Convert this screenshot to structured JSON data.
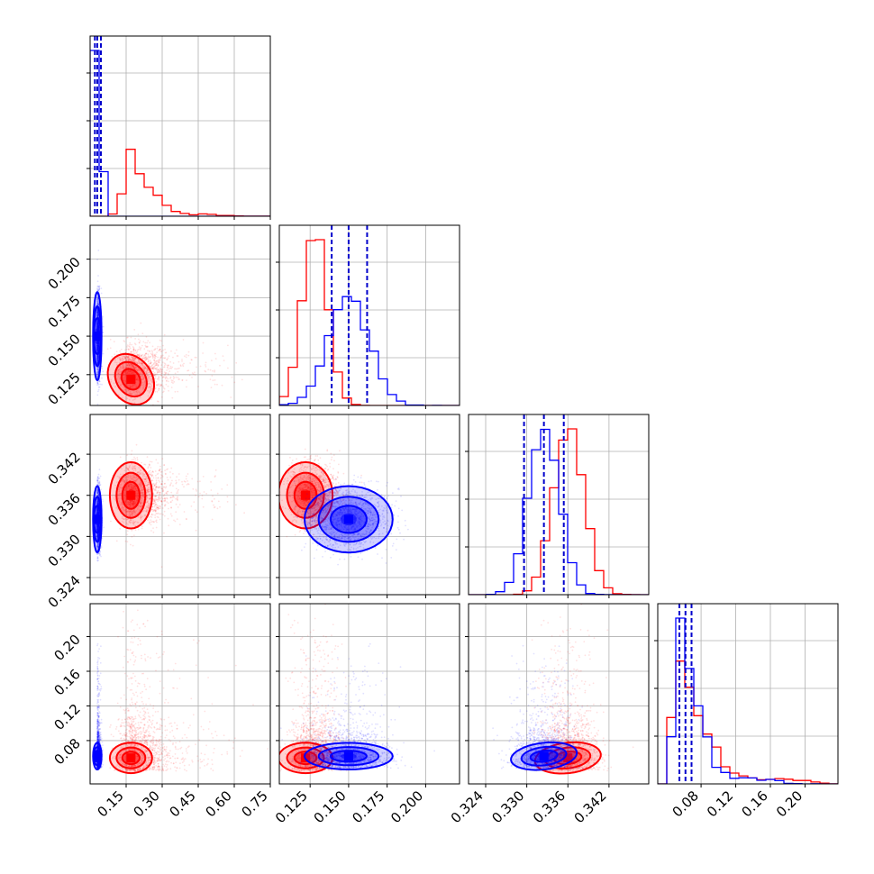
{
  "chart_data": {
    "type": "corner",
    "parameters": 4,
    "series": [
      {
        "color": "#0000ff",
        "mean": [
          0.03,
          0.15,
          0.3325,
          0.062
        ],
        "sd": [
          0.008,
          0.013,
          0.0022,
          0.007
        ],
        "hist_peak": [
          0.03,
          0.15,
          0.3325,
          0.062
        ],
        "quantiles": [
          [
            0.02,
            0.03,
            0.045
          ],
          [
            0.139,
            0.15,
            0.162
          ],
          [
            0.3296,
            0.3325,
            0.3354
          ],
          [
            0.055,
            0.062,
            0.069
          ]
        ]
      },
      {
        "color": "#ff0000",
        "mean": [
          0.19,
          0.128,
          0.3361,
          0.062
        ],
        "sd": [
          0.04,
          0.008,
          0.0022,
          0.008
        ],
        "hist_peak": [
          0.17,
          0.122,
          0.336,
          0.06
        ]
      }
    ],
    "axes": [
      {
        "range": [
          0.0,
          0.75
        ],
        "ticks": [
          "0.15",
          "0.30",
          "0.45",
          "0.60",
          "0.75"
        ],
        "tick_values": [
          0.15,
          0.3,
          0.45,
          0.6,
          0.75
        ]
      },
      {
        "range": [
          0.105,
          0.222
        ],
        "ticks": [
          "0.125",
          "0.150",
          "0.175",
          "0.200"
        ],
        "tick_values": [
          0.125,
          0.15,
          0.175,
          0.2
        ]
      },
      {
        "range": [
          0.3215,
          0.3478
        ],
        "ticks": [
          "0.324",
          "0.330",
          "0.336",
          "0.342"
        ],
        "tick_values": [
          0.324,
          0.33,
          0.336,
          0.342
        ]
      },
      {
        "range": [
          0.03,
          0.238
        ],
        "ticks": [
          "0.08",
          "0.12",
          "0.16",
          "0.20"
        ],
        "tick_values": [
          0.08,
          0.12,
          0.16,
          0.2
        ]
      }
    ],
    "grid": true
  }
}
